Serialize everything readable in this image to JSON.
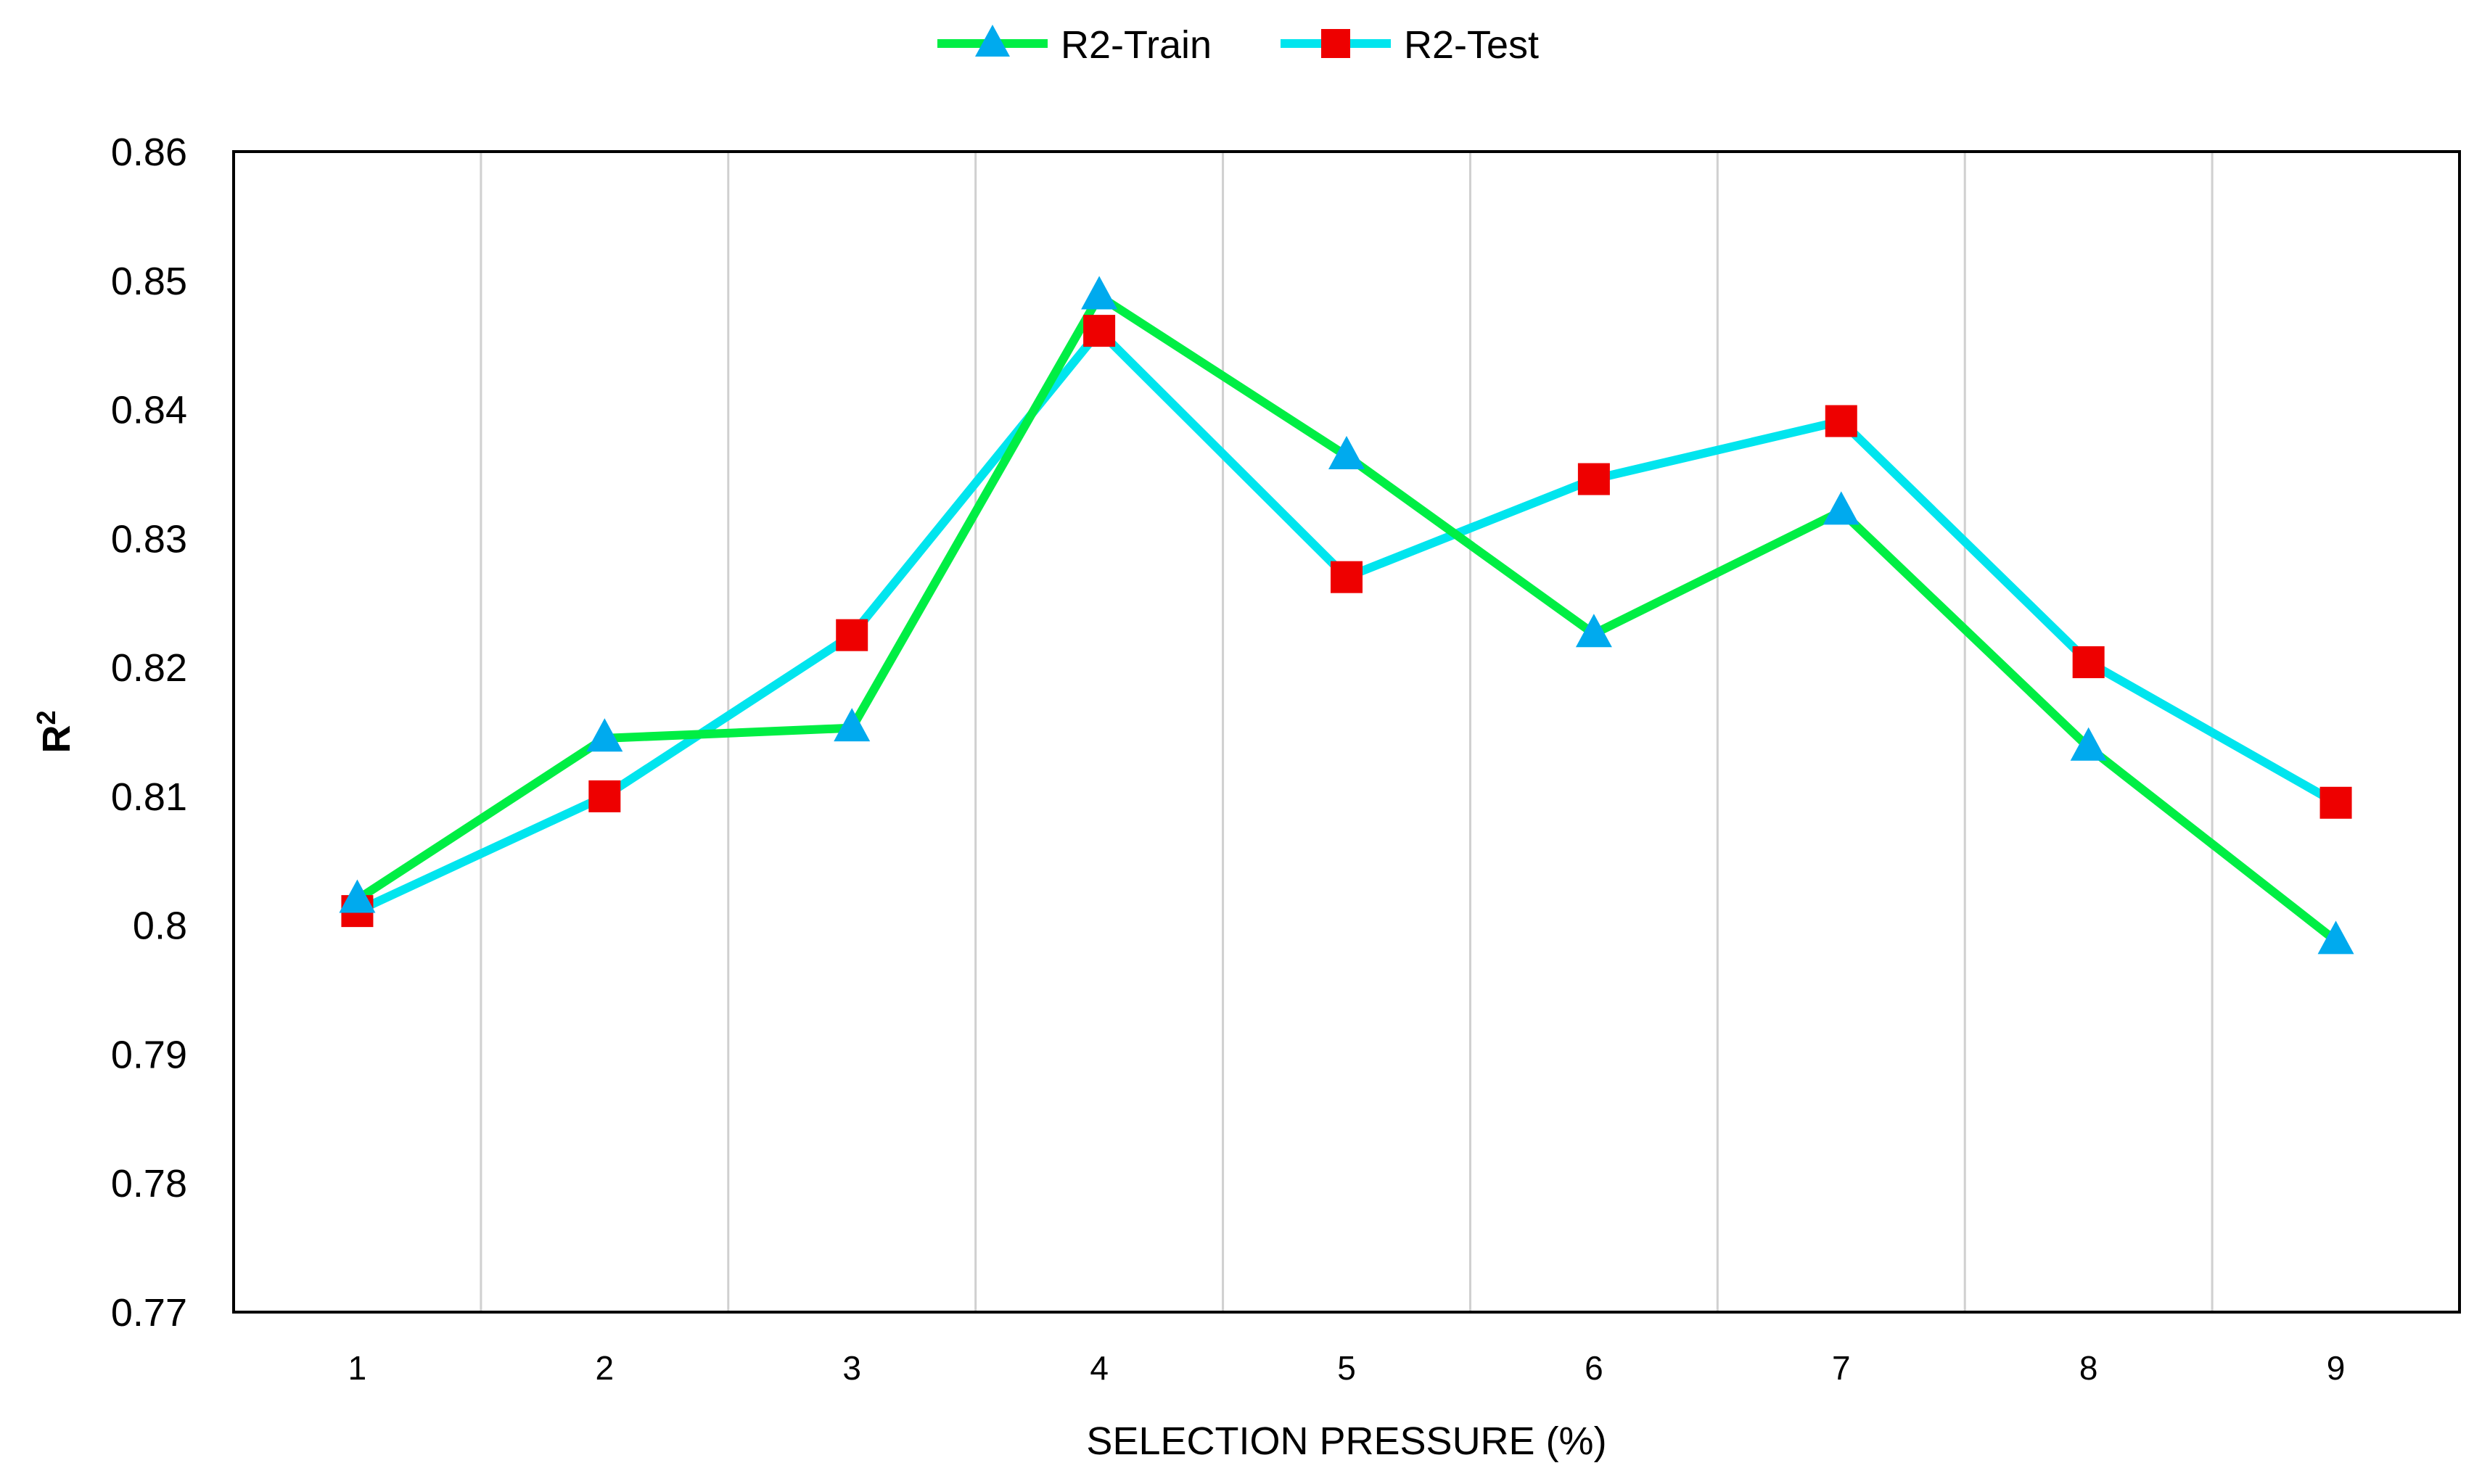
{
  "chart_data": {
    "type": "line",
    "xlabel": "SELECTION PRESSURE (%)",
    "ylabel": "R",
    "ylabel_superscript": "2",
    "categories": [
      "1",
      "2",
      "3",
      "4",
      "5",
      "6",
      "7",
      "8",
      "9"
    ],
    "ylim": [
      0.77,
      0.86
    ],
    "yticks": [
      "0.86",
      "0.85",
      "0.84",
      "0.83",
      "0.82",
      "0.81",
      "0.8",
      "0.79",
      "0.78",
      "0.77"
    ],
    "grid": "vertical",
    "legend_position": "top-center",
    "series": [
      {
        "name": "R2-Train",
        "line_color": "#00ee44",
        "marker": "triangle",
        "marker_color": "#00aaee",
        "values": [
          0.802,
          0.8145,
          0.8153,
          0.8488,
          0.8364,
          0.8226,
          0.8321,
          0.8138,
          0.7988
        ]
      },
      {
        "name": "R2-Test",
        "line_color": "#00e5ee",
        "marker": "square",
        "marker_color": "#ee0000",
        "values": [
          0.8011,
          0.81,
          0.8225,
          0.8461,
          0.827,
          0.8346,
          0.8391,
          0.8204,
          0.8095
        ]
      }
    ]
  }
}
